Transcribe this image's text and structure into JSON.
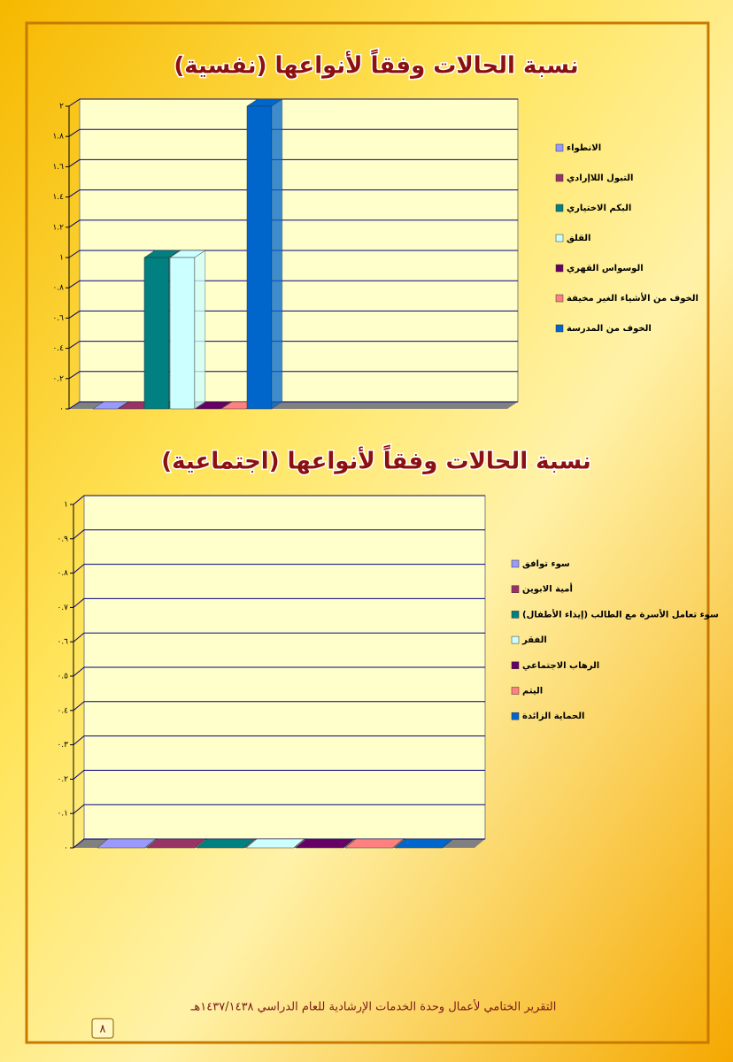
{
  "chart_data": [
    {
      "type": "bar",
      "title": "نسبة الحالات وفقاً لأنواعها (نفسية)",
      "categories": [
        null
      ],
      "series": [
        {
          "name": "الانطواء",
          "color": "#9999ff",
          "values": [
            0
          ]
        },
        {
          "name": "التبول اللاإرادي",
          "color": "#993366",
          "values": [
            0
          ]
        },
        {
          "name": "البكم الاختياري",
          "color": "#008080",
          "values": [
            1
          ]
        },
        {
          "name": "القلق",
          "color": "#ccffff",
          "values": [
            1
          ]
        },
        {
          "name": "الوسواس القهري",
          "color": "#660066",
          "values": [
            0
          ]
        },
        {
          "name": "الخوف من الأشياء الغير مخيفة",
          "color": "#ff8080",
          "values": [
            0
          ]
        },
        {
          "name": "الخوف من المدرسة",
          "color": "#0066cc",
          "values": [
            2
          ]
        }
      ],
      "ylim": [
        0,
        2
      ],
      "yticks": [
        {
          "value": 0,
          "label": "٠"
        },
        {
          "value": 0.2,
          "label": "٠.٢"
        },
        {
          "value": 0.4,
          "label": "٠.٤"
        },
        {
          "value": 0.6,
          "label": "٠.٦"
        },
        {
          "value": 0.8,
          "label": "٠.٨"
        },
        {
          "value": 1,
          "label": "١"
        },
        {
          "value": 1.2,
          "label": "١.٢"
        },
        {
          "value": 1.4,
          "label": "١.٤"
        },
        {
          "value": 1.6,
          "label": "١.٦"
        },
        {
          "value": 1.8,
          "label": "١.٨"
        },
        {
          "value": 2,
          "label": "٢"
        }
      ],
      "grid": true,
      "legend": "right"
    },
    {
      "type": "bar",
      "title": "نسبة الحالات وفقاً لأنواعها (اجتماعية)",
      "categories": [
        null
      ],
      "series": [
        {
          "name": "سوء توافق",
          "color": "#9999ff",
          "values": [
            0
          ]
        },
        {
          "name": "أمية الابوين",
          "color": "#993366",
          "values": [
            0
          ]
        },
        {
          "name": "سوء تعامل الأسرة مع الطالب (إيذاء الأطفال)",
          "color": "#008080",
          "values": [
            0
          ]
        },
        {
          "name": "الفقر",
          "color": "#ccffff",
          "values": [
            0
          ]
        },
        {
          "name": "الرهاب الاجتماعي",
          "color": "#660066",
          "values": [
            0
          ]
        },
        {
          "name": "اليتم",
          "color": "#ff8080",
          "values": [
            0
          ]
        },
        {
          "name": "الحماية الزائدة",
          "color": "#0066cc",
          "values": [
            0
          ]
        }
      ],
      "ylim": [
        0,
        1
      ],
      "yticks": [
        {
          "value": 0,
          "label": "٠"
        },
        {
          "value": 0.1,
          "label": "٠.١"
        },
        {
          "value": 0.2,
          "label": "٠.٢"
        },
        {
          "value": 0.3,
          "label": "٠.٣"
        },
        {
          "value": 0.4,
          "label": "٠.٤"
        },
        {
          "value": 0.5,
          "label": "٠.٥"
        },
        {
          "value": 0.6,
          "label": "٠.٦"
        },
        {
          "value": 0.7,
          "label": "٠.٧"
        },
        {
          "value": 0.8,
          "label": "٠.٨"
        },
        {
          "value": 0.9,
          "label": "٠.٩"
        },
        {
          "value": 1,
          "label": "١"
        }
      ],
      "grid": true,
      "legend": "right"
    }
  ],
  "footer": "التقرير الختامي لأعمال وحدة الخدمات الإرشادية للعام الدراسي ١٤٣٧/١٤٣٨هـ",
  "page_number": "٨"
}
